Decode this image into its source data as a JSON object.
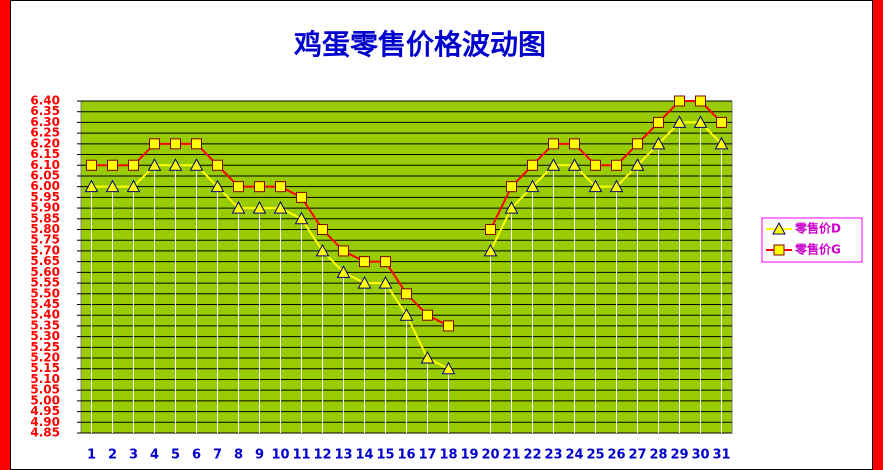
{
  "chart_data": {
    "type": "line",
    "title": "鸡蛋零售价格波动图",
    "categories": [
      "1",
      "2",
      "3",
      "4",
      "5",
      "6",
      "7",
      "8",
      "9",
      "10",
      "11",
      "12",
      "13",
      "14",
      "15",
      "16",
      "17",
      "18",
      "19",
      "20",
      "21",
      "22",
      "23",
      "24",
      "25",
      "26",
      "27",
      "28",
      "29",
      "30",
      "31"
    ],
    "series": [
      {
        "name": "零售价D",
        "color": "#ffff00",
        "marker": "triangle",
        "values": [
          6.0,
          6.0,
          6.0,
          6.1,
          6.1,
          6.1,
          6.0,
          5.9,
          5.9,
          5.9,
          5.85,
          5.7,
          5.6,
          5.55,
          5.55,
          5.4,
          5.2,
          5.15,
          null,
          5.7,
          5.9,
          6.0,
          6.1,
          6.1,
          6.0,
          6.0,
          6.1,
          6.2,
          6.3,
          6.3,
          6.2
        ]
      },
      {
        "name": "零售价G",
        "color": "#ff0000",
        "marker": "square",
        "values": [
          6.1,
          6.1,
          6.1,
          6.2,
          6.2,
          6.2,
          6.1,
          6.0,
          6.0,
          6.0,
          5.95,
          5.8,
          5.7,
          5.65,
          5.65,
          5.5,
          5.4,
          5.35,
          null,
          5.8,
          6.0,
          6.1,
          6.2,
          6.2,
          6.1,
          6.1,
          6.2,
          6.3,
          6.4,
          6.4,
          6.3
        ]
      }
    ],
    "ylim": [
      4.85,
      6.4
    ],
    "yticks": [
      {
        "value": 4.85,
        "label": "4.85"
      },
      {
        "value": 4.9,
        "label": "4.90"
      },
      4.95,
      {
        "value": 5.0,
        "label": "5.00"
      },
      5.05,
      {
        "value": 5.1,
        "label": "5.10"
      },
      5.15,
      {
        "value": 5.2,
        "label": "5.20"
      },
      5.25,
      {
        "value": 5.3,
        "label": "5.30"
      },
      5.35,
      {
        "value": 5.4,
        "label": "5.40"
      },
      5.45,
      {
        "value": 5.5,
        "label": "5.50"
      },
      5.55,
      {
        "value": 5.6,
        "label": "5.60"
      },
      5.65,
      {
        "value": 5.7,
        "label": "5.70"
      },
      5.75,
      {
        "value": 5.8,
        "label": "5.80"
      },
      5.85,
      {
        "value": 5.9,
        "label": "5.90"
      },
      5.95,
      {
        "value": 6.0,
        "label": "6.00"
      },
      6.05,
      {
        "value": 6.1,
        "label": "6.10"
      },
      6.15,
      {
        "value": 6.2,
        "label": "6.20"
      },
      6.25,
      {
        "value": 6.3,
        "label": "6.30"
      },
      6.35,
      {
        "value": 6.4,
        "label": "6.40"
      }
    ],
    "grid": true,
    "legend": "right",
    "plot_color": "#99cc00"
  }
}
